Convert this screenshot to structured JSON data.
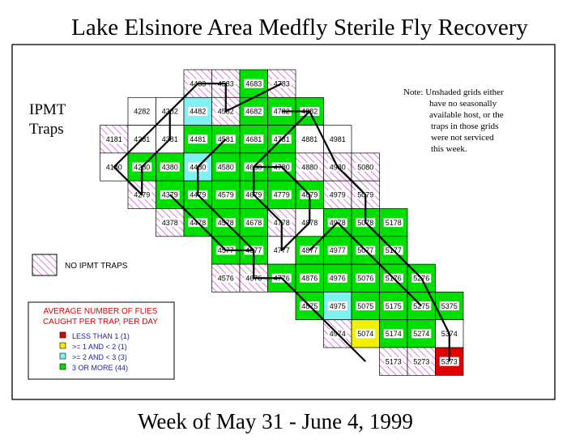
{
  "title": "Lake Elsinore Area Medfly Sterile Fly Recovery",
  "subtitle": "Week of May 31 - June 4, 1999",
  "side_label": [
    "IPMT",
    "Traps"
  ],
  "note": [
    "Note: Unshaded grids either",
    "have no seasonally",
    "available host, or the",
    "traps in those grids",
    "were not serviced",
    "this week."
  ],
  "no_traps_label": "NO IPMT TRAPS",
  "legend": {
    "title": [
      "AVERAGE NUMBER OF FLIES",
      "CAUGHT PER TRAP, PER DAY"
    ],
    "items": [
      {
        "label": "LESS THAN 1  (1)",
        "color": "#e00000"
      },
      {
        "label": ">= 1 AND < 2   (1)",
        "color": "#f0f000"
      },
      {
        "label": ">= 2 AND < 3   (3)",
        "color": "#80f0f0"
      },
      {
        "label": "3 OR MORE   (44)",
        "color": "#00e000"
      }
    ]
  },
  "colors": {
    "green": "#00e000",
    "cyan": "#80f0f0",
    "yellow": "#f0f000",
    "red": "#e00000",
    "none": "#ffffff",
    "hatch": "#d060d0"
  },
  "grid_cells": [
    {
      "id": "4483",
      "c": 0,
      "r": 0,
      "s": "hatch"
    },
    {
      "id": "4583",
      "c": 1,
      "r": 0,
      "s": "hatch"
    },
    {
      "id": "4683",
      "c": 2,
      "r": 0,
      "s": "green"
    },
    {
      "id": "4783",
      "c": 3,
      "r": 0,
      "s": "hatch"
    },
    {
      "id": "4282",
      "c": -2,
      "r": 1,
      "s": "none"
    },
    {
      "id": "4382",
      "c": -1,
      "r": 1,
      "s": "none"
    },
    {
      "id": "4482",
      "c": 0,
      "r": 1,
      "s": "cyan"
    },
    {
      "id": "4582",
      "c": 1,
      "r": 1,
      "s": "hatch"
    },
    {
      "id": "4682",
      "c": 2,
      "r": 1,
      "s": "green"
    },
    {
      "id": "4782",
      "c": 3,
      "r": 1,
      "s": "green"
    },
    {
      "id": "4882",
      "c": 4,
      "r": 1,
      "s": "green"
    },
    {
      "id": "4181",
      "c": -3,
      "r": 2,
      "s": "hatch"
    },
    {
      "id": "4281",
      "c": -2,
      "r": 2,
      "s": "none"
    },
    {
      "id": "4381",
      "c": -1,
      "r": 2,
      "s": "none"
    },
    {
      "id": "4481",
      "c": 0,
      "r": 2,
      "s": "green"
    },
    {
      "id": "4581",
      "c": 1,
      "r": 2,
      "s": "green"
    },
    {
      "id": "4681",
      "c": 2,
      "r": 2,
      "s": "green"
    },
    {
      "id": "4781",
      "c": 3,
      "r": 2,
      "s": "green"
    },
    {
      "id": "4881",
      "c": 4,
      "r": 2,
      "s": "none"
    },
    {
      "id": "4981",
      "c": 5,
      "r": 2,
      "s": "none"
    },
    {
      "id": "4180",
      "c": -3,
      "r": 3,
      "s": "none"
    },
    {
      "id": "4280",
      "c": -2,
      "r": 3,
      "s": "green"
    },
    {
      "id": "4380",
      "c": -1,
      "r": 3,
      "s": "green"
    },
    {
      "id": "4480",
      "c": 0,
      "r": 3,
      "s": "cyan"
    },
    {
      "id": "4580",
      "c": 1,
      "r": 3,
      "s": "green"
    },
    {
      "id": "4680",
      "c": 2,
      "r": 3,
      "s": "green"
    },
    {
      "id": "4780",
      "c": 3,
      "r": 3,
      "s": "green"
    },
    {
      "id": "4880",
      "c": 4,
      "r": 3,
      "s": "hatch"
    },
    {
      "id": "4980",
      "c": 5,
      "r": 3,
      "s": "hatch"
    },
    {
      "id": "5080",
      "c": 6,
      "r": 3,
      "s": "hatch"
    },
    {
      "id": "4279",
      "c": -2,
      "r": 4,
      "s": "hatch"
    },
    {
      "id": "4379",
      "c": -1,
      "r": 4,
      "s": "green"
    },
    {
      "id": "4479",
      "c": 0,
      "r": 4,
      "s": "green"
    },
    {
      "id": "4579",
      "c": 1,
      "r": 4,
      "s": "green"
    },
    {
      "id": "4679",
      "c": 2,
      "r": 4,
      "s": "green"
    },
    {
      "id": "4779",
      "c": 3,
      "r": 4,
      "s": "green"
    },
    {
      "id": "4879",
      "c": 4,
      "r": 4,
      "s": "green"
    },
    {
      "id": "4979",
      "c": 5,
      "r": 4,
      "s": "hatch"
    },
    {
      "id": "5079",
      "c": 6,
      "r": 4,
      "s": "hatch"
    },
    {
      "id": "4378",
      "c": -1,
      "r": 5,
      "s": "hatch"
    },
    {
      "id": "4478",
      "c": 0,
      "r": 5,
      "s": "green"
    },
    {
      "id": "4578",
      "c": 1,
      "r": 5,
      "s": "green"
    },
    {
      "id": "4678",
      "c": 2,
      "r": 5,
      "s": "green"
    },
    {
      "id": "4778",
      "c": 3,
      "r": 5,
      "s": "hatch"
    },
    {
      "id": "4878",
      "c": 4,
      "r": 5,
      "s": "none"
    },
    {
      "id": "4978",
      "c": 5,
      "r": 5,
      "s": "green"
    },
    {
      "id": "5078",
      "c": 6,
      "r": 5,
      "s": "green"
    },
    {
      "id": "5178",
      "c": 7,
      "r": 5,
      "s": "green"
    },
    {
      "id": "4577",
      "c": 1,
      "r": 6,
      "s": "green"
    },
    {
      "id": "4677",
      "c": 2,
      "r": 6,
      "s": "green"
    },
    {
      "id": "4777",
      "c": 3,
      "r": 6,
      "s": "none"
    },
    {
      "id": "4877",
      "c": 4,
      "r": 6,
      "s": "green"
    },
    {
      "id": "4977",
      "c": 5,
      "r": 6,
      "s": "green"
    },
    {
      "id": "5077",
      "c": 6,
      "r": 6,
      "s": "green"
    },
    {
      "id": "5177",
      "c": 7,
      "r": 6,
      "s": "green"
    },
    {
      "id": "4576",
      "c": 1,
      "r": 7,
      "s": "hatch"
    },
    {
      "id": "4676",
      "c": 2,
      "r": 7,
      "s": "hatch"
    },
    {
      "id": "4776",
      "c": 3,
      "r": 7,
      "s": "green"
    },
    {
      "id": "4876",
      "c": 4,
      "r": 7,
      "s": "green"
    },
    {
      "id": "4976",
      "c": 5,
      "r": 7,
      "s": "green"
    },
    {
      "id": "5076",
      "c": 6,
      "r": 7,
      "s": "green"
    },
    {
      "id": "5176",
      "c": 7,
      "r": 7,
      "s": "green"
    },
    {
      "id": "5276",
      "c": 8,
      "r": 7,
      "s": "green"
    },
    {
      "id": "4875",
      "c": 4,
      "r": 8,
      "s": "green"
    },
    {
      "id": "4975",
      "c": 5,
      "r": 8,
      "s": "cyan"
    },
    {
      "id": "5075",
      "c": 6,
      "r": 8,
      "s": "green"
    },
    {
      "id": "5175",
      "c": 7,
      "r": 8,
      "s": "green"
    },
    {
      "id": "5275",
      "c": 8,
      "r": 8,
      "s": "green"
    },
    {
      "id": "5375",
      "c": 9,
      "r": 8,
      "s": "green"
    },
    {
      "id": "4974",
      "c": 5,
      "r": 9,
      "s": "hatch"
    },
    {
      "id": "5074",
      "c": 6,
      "r": 9,
      "s": "yellow"
    },
    {
      "id": "5174",
      "c": 7,
      "r": 9,
      "s": "green"
    },
    {
      "id": "5274",
      "c": 8,
      "r": 9,
      "s": "green"
    },
    {
      "id": "5374",
      "c": 9,
      "r": 9,
      "s": "none"
    },
    {
      "id": "5173",
      "c": 7,
      "r": 10,
      "s": "hatch"
    },
    {
      "id": "5273",
      "c": 8,
      "r": 10,
      "s": "hatch"
    },
    {
      "id": "5373",
      "c": 9,
      "r": 10,
      "s": "red"
    }
  ],
  "route": [
    [
      [
        3,
        0
      ],
      [
        1,
        1
      ],
      [
        1,
        0
      ],
      [
        0,
        0
      ],
      [
        -1,
        1
      ],
      [
        -1,
        2
      ],
      [
        -2,
        3
      ],
      [
        -2,
        4
      ],
      [
        -3,
        3
      ],
      [
        -2,
        2
      ],
      [
        -1,
        1
      ],
      [
        0,
        0
      ]
    ],
    [
      [
        3,
        1
      ],
      [
        4,
        1
      ],
      [
        5,
        3
      ],
      [
        6,
        4
      ],
      [
        6,
        5
      ],
      [
        7,
        6
      ],
      [
        8,
        7
      ],
      [
        9,
        9
      ],
      [
        9,
        10
      ]
    ],
    [
      [
        4,
        1
      ],
      [
        3,
        2
      ],
      [
        2,
        3
      ],
      [
        2,
        4
      ],
      [
        3,
        5
      ],
      [
        3,
        6
      ],
      [
        4,
        5
      ],
      [
        4,
        4
      ],
      [
        3,
        3
      ],
      [
        2,
        3
      ]
    ],
    [
      [
        1,
        2
      ],
      [
        0,
        3
      ],
      [
        0,
        4
      ],
      [
        1,
        5
      ],
      [
        2,
        6
      ],
      [
        2,
        7
      ],
      [
        3,
        7
      ],
      [
        4,
        8
      ],
      [
        5,
        9
      ],
      [
        6,
        10
      ]
    ],
    [
      [
        -1,
        4
      ],
      [
        0,
        5
      ],
      [
        1,
        6
      ],
      [
        2,
        6
      ]
    ],
    [
      [
        4,
        6
      ],
      [
        5,
        5
      ],
      [
        6,
        6
      ],
      [
        7,
        7
      ],
      [
        8,
        8
      ]
    ]
  ]
}
